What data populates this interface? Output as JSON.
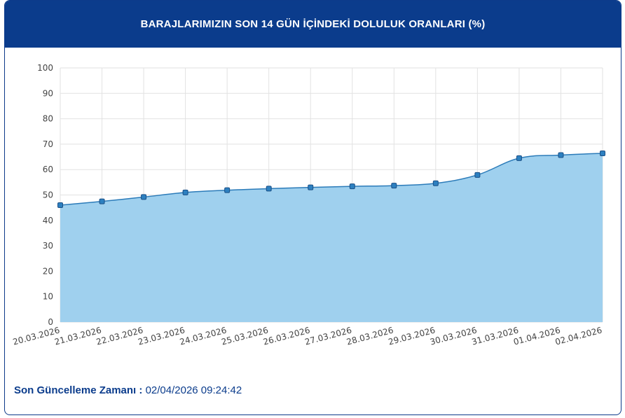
{
  "header": {
    "title": "BARAJLARIMIZIN SON 14 GÜN İÇİNDEKİ DOLULUK ORANLARI (%)"
  },
  "footer": {
    "label": "Son Güncelleme Zamanı",
    "separator": " : ",
    "value": "02/04/2026 09:24:42"
  },
  "colors": {
    "header_bg": "#0b3c8c",
    "area_fill": "#9fd0ee",
    "line": "#2b7bb9",
    "marker": "#2d80c0"
  },
  "chart_data": {
    "type": "area",
    "title": "BARAJLARIMIZIN SON 14 GÜN İÇİNDEKİ DOLULUK ORANLARI (%)",
    "xlabel": "",
    "ylabel": "",
    "ylim": [
      0,
      100
    ],
    "yticks": [
      0,
      10,
      20,
      30,
      40,
      50,
      60,
      70,
      80,
      90,
      100
    ],
    "grid": true,
    "categories": [
      "20.03.2026",
      "21.03.2026",
      "22.03.2026",
      "23.03.2026",
      "24.03.2026",
      "25.03.2026",
      "26.03.2026",
      "27.03.2026",
      "28.03.2026",
      "29.03.2026",
      "30.03.2026",
      "31.03.2026",
      "01.04.2026",
      "02.04.2026"
    ],
    "series": [
      {
        "values": [
          46.0,
          47.5,
          49.2,
          51.0,
          51.9,
          52.5,
          53.0,
          53.4,
          53.7,
          54.6,
          57.9,
          64.5,
          65.7,
          66.4
        ]
      }
    ]
  }
}
